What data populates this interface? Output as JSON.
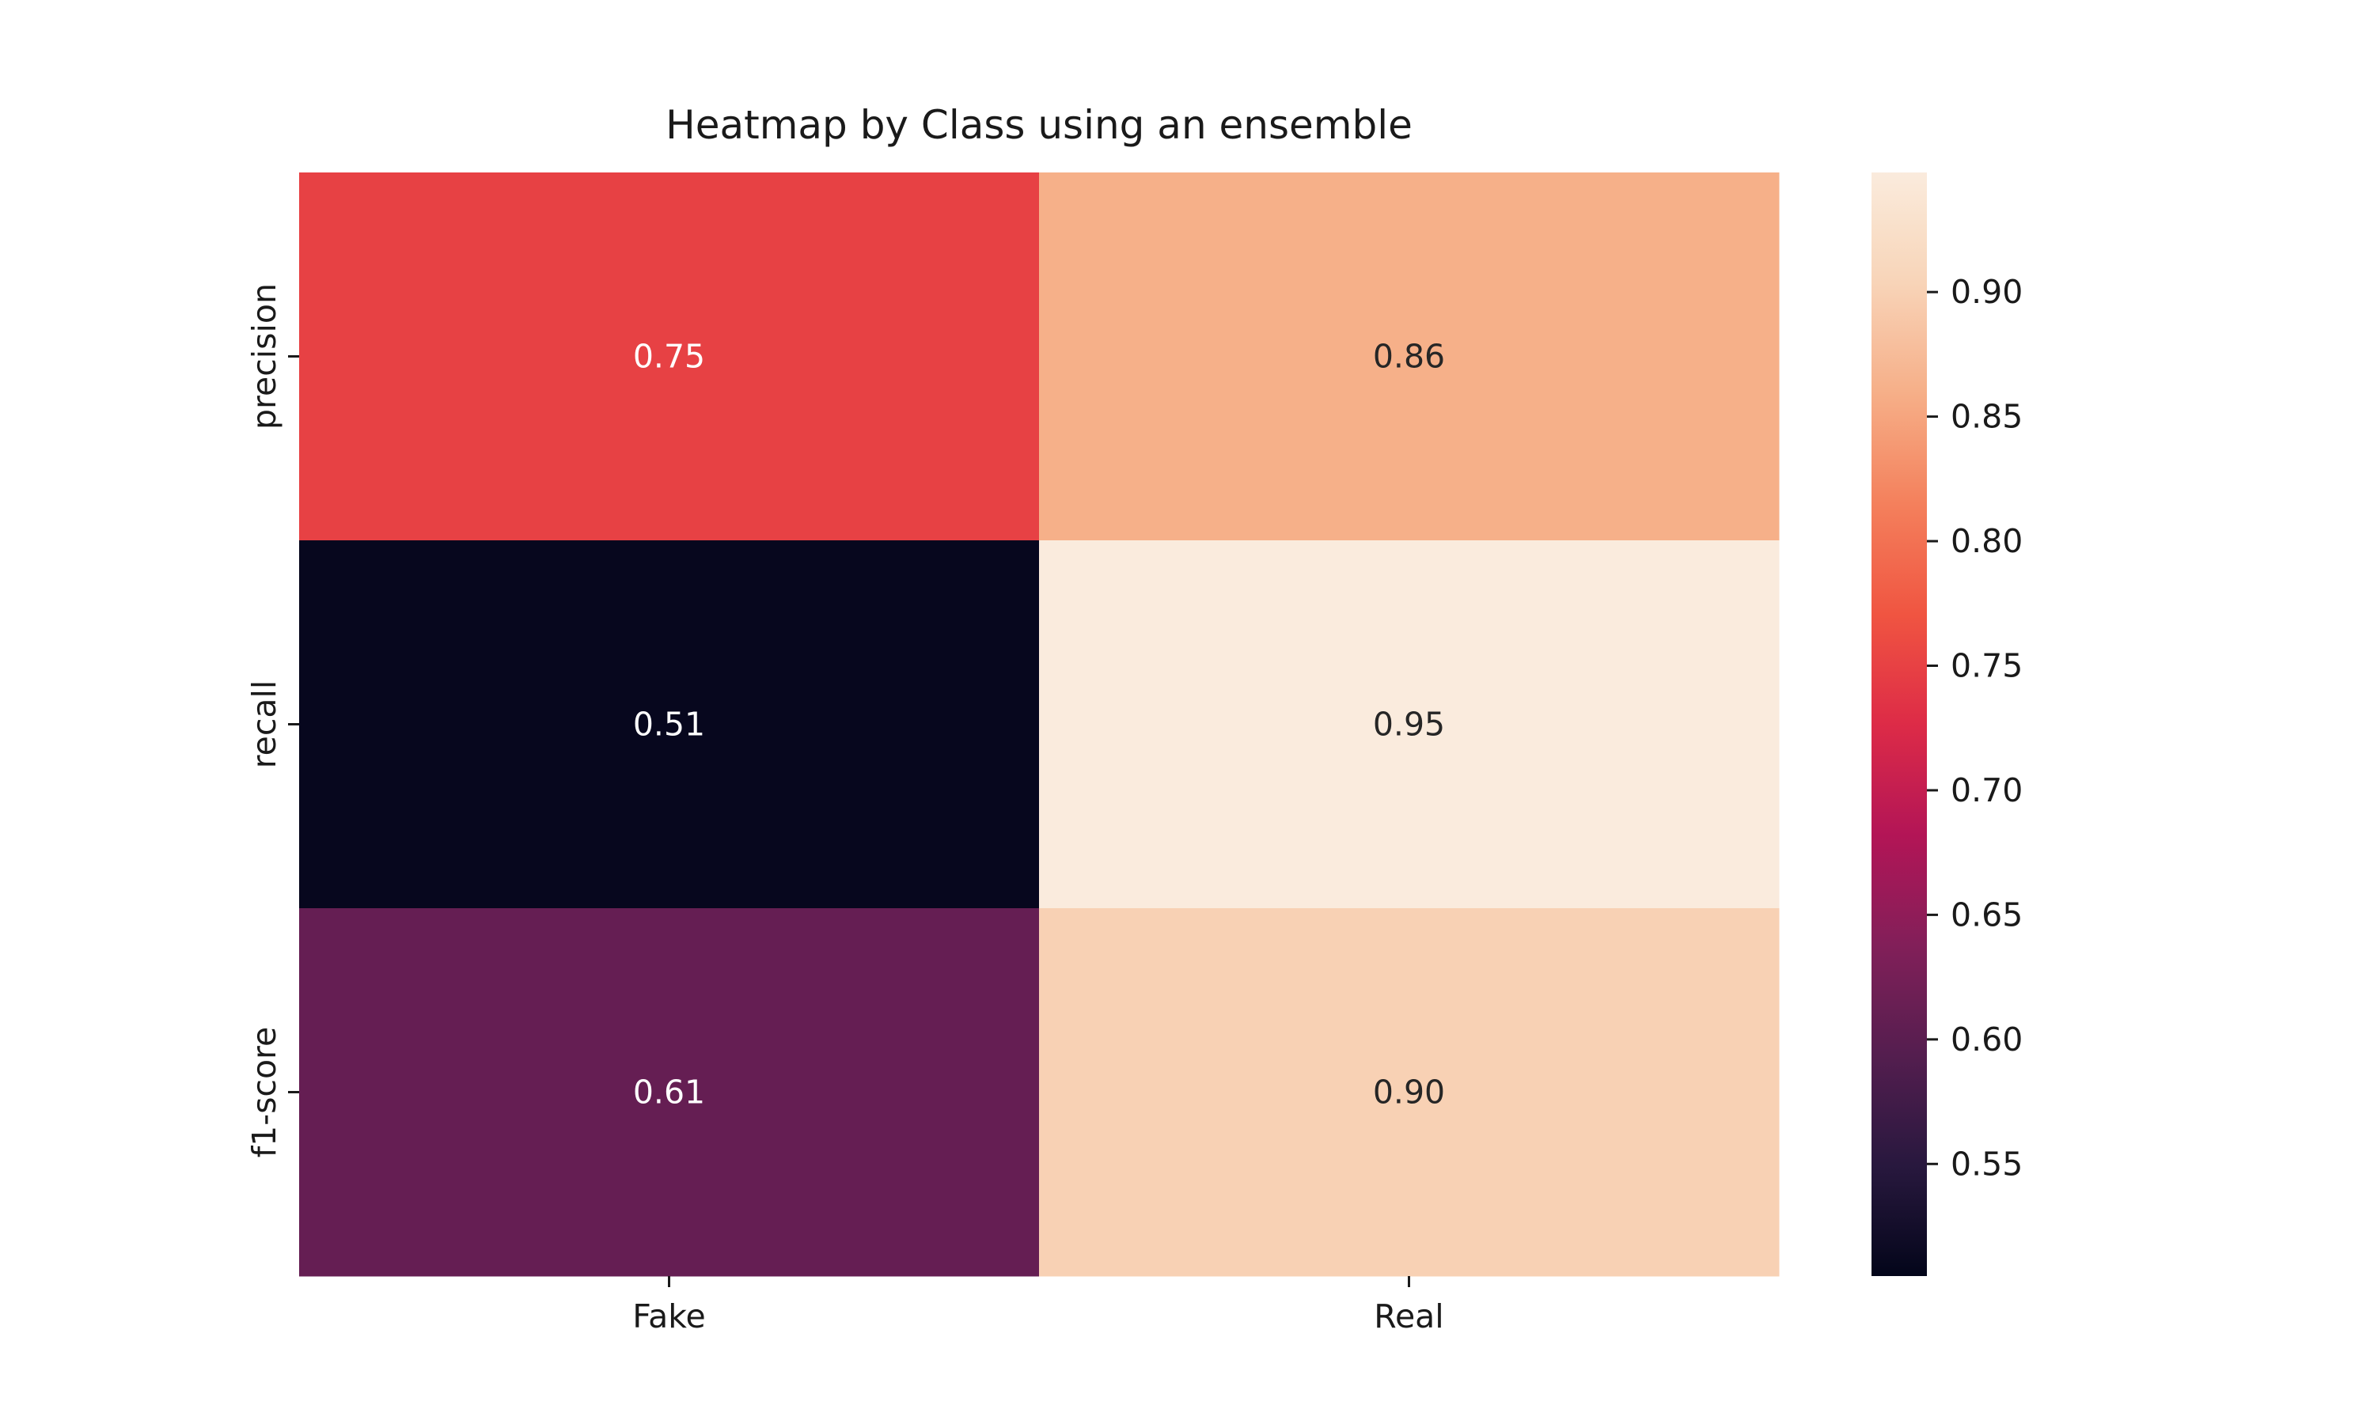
{
  "chart_data": {
    "type": "heatmap",
    "title": "Heatmap by Class using an ensemble",
    "xlabel": "",
    "ylabel": "",
    "x_categories": [
      "Fake",
      "Real"
    ],
    "y_categories": [
      "precision",
      "recall",
      "f1-score"
    ],
    "values": [
      [
        0.75,
        0.86
      ],
      [
        0.51,
        0.95
      ],
      [
        0.61,
        0.9
      ]
    ],
    "value_labels": [
      [
        "0.75",
        "0.86"
      ],
      [
        "0.51",
        "0.95"
      ],
      [
        "0.61",
        "0.90"
      ]
    ],
    "colormap": "rocket",
    "colorbar": {
      "range": [
        0.505,
        0.948
      ],
      "ticks": [
        0.55,
        0.6,
        0.65,
        0.7,
        0.75,
        0.8,
        0.85,
        0.9
      ],
      "tick_labels": [
        "0.55",
        "0.60",
        "0.65",
        "0.70",
        "0.75",
        "0.80",
        "0.85",
        "0.90"
      ]
    },
    "grid": false,
    "legend": "colorbar-right"
  }
}
